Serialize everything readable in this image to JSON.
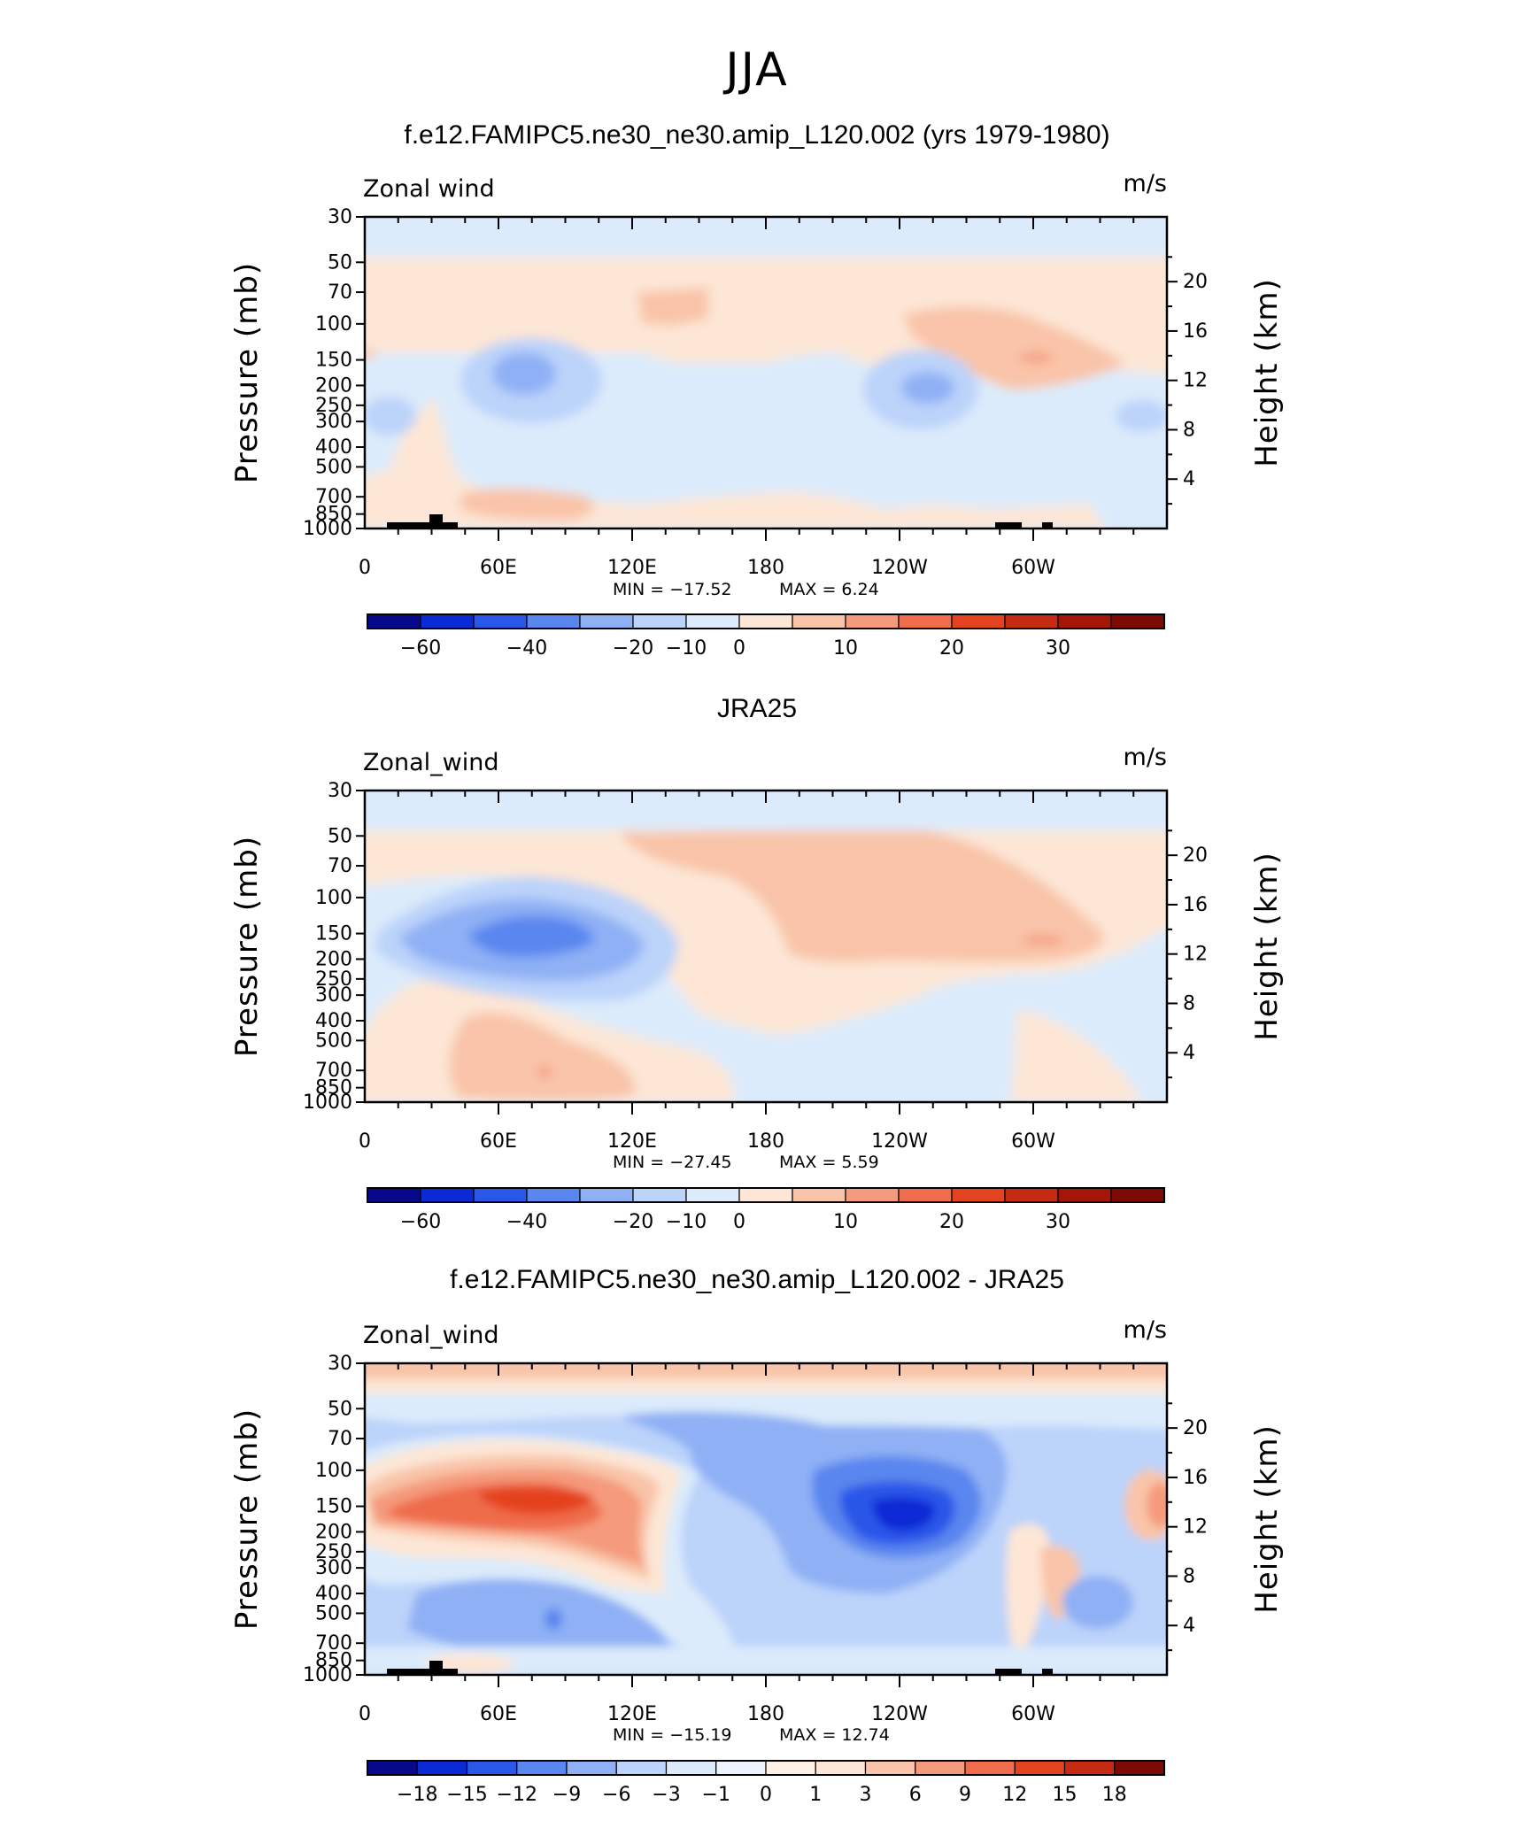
{
  "figure": {
    "title": "JJA"
  },
  "chart_data": [
    {
      "type": "heatmap",
      "title": "f.e12.FAMIPC5.ne30_ne30.amip_L120.002 (yrs 1979-1980)",
      "left_label": "Zonal wind",
      "units_label": "m/s",
      "ylabel": "Pressure (mb)",
      "ylabel_right": "Height (km)",
      "x_ticks": [
        "0",
        "60E",
        "120E",
        "180",
        "120W",
        "60W"
      ],
      "y_ticks": [
        "30",
        "50",
        "70",
        "100",
        "150",
        "200",
        "250",
        "300",
        "400",
        "500",
        "700",
        "850",
        "1000"
      ],
      "y_right_ticks": [
        "20",
        "16",
        "12",
        "8",
        "4"
      ],
      "min_text": "MIN = −17.52",
      "max_text": "MAX = 6.24",
      "colorbar_labels": [
        "−60",
        "−40",
        "−20",
        "−10",
        "0",
        "10",
        "20",
        "30"
      ],
      "colorbar_colors": [
        "#08088c",
        "#0a2ad6",
        "#2a57e8",
        "#5a86ef",
        "#8fb0f5",
        "#bcd3fa",
        "#dcebfb",
        "#fde6d6",
        "#f9c4a9",
        "#f59a7c",
        "#ef6c4c",
        "#e4431f",
        "#c52a12",
        "#a31608",
        "#7d0a04"
      ],
      "features": [
        {
          "lon": 0,
          "lat": 0,
          "p": 30,
          "u": -3
        },
        {
          "lon": 78,
          "p": 180,
          "u": -17.52
        },
        {
          "lon": 230,
          "p": 200,
          "u": -15
        },
        {
          "lon": 290,
          "p": 150,
          "u": 6.24
        }
      ]
    },
    {
      "type": "heatmap",
      "title": "JRA25",
      "left_label": "Zonal_wind",
      "units_label": "m/s",
      "ylabel": "Pressure (mb)",
      "ylabel_right": "Height (km)",
      "x_ticks": [
        "0",
        "60E",
        "120E",
        "180",
        "120W",
        "60W"
      ],
      "y_ticks": [
        "30",
        "50",
        "70",
        "100",
        "150",
        "200",
        "250",
        "300",
        "400",
        "500",
        "700",
        "850",
        "1000"
      ],
      "y_right_ticks": [
        "20",
        "16",
        "12",
        "8",
        "4"
      ],
      "min_text": "MIN = −27.45",
      "max_text": "MAX = 5.59",
      "colorbar_labels": [
        "−60",
        "−40",
        "−20",
        "−10",
        "0",
        "10",
        "20",
        "30"
      ],
      "colorbar_colors": [
        "#08088c",
        "#0a2ad6",
        "#2a57e8",
        "#5a86ef",
        "#8fb0f5",
        "#bcd3fa",
        "#dcebfb",
        "#fde6d6",
        "#f9c4a9",
        "#f59a7c",
        "#ef6c4c",
        "#e4431f",
        "#c52a12",
        "#a31608",
        "#7d0a04"
      ],
      "features": [
        {
          "lon": 70,
          "p": 150,
          "u": -27.45
        },
        {
          "lon": 240,
          "p": 100,
          "u": 5.59
        }
      ]
    },
    {
      "type": "heatmap",
      "title": "f.e12.FAMIPC5.ne30_ne30.amip_L120.002 - JRA25",
      "left_label": "Zonal_wind",
      "units_label": "m/s",
      "ylabel": "Pressure (mb)",
      "ylabel_right": "Height (km)",
      "x_ticks": [
        "0",
        "60E",
        "120E",
        "180",
        "120W",
        "60W"
      ],
      "y_ticks": [
        "30",
        "50",
        "70",
        "100",
        "150",
        "200",
        "250",
        "300",
        "400",
        "500",
        "700",
        "850",
        "1000"
      ],
      "y_right_ticks": [
        "20",
        "16",
        "12",
        "8",
        "4"
      ],
      "min_text": "MIN = −15.19",
      "max_text": "MAX = 12.74",
      "colorbar_labels": [
        "−18",
        "−15",
        "−12",
        "−9",
        "−6",
        "−3",
        "−1",
        "0",
        "1",
        "3",
        "6",
        "9",
        "12",
        "15",
        "18"
      ],
      "colorbar_colors": [
        "#08088c",
        "#0a2ad6",
        "#2a57e8",
        "#5a86ef",
        "#8fb0f5",
        "#bcd3fa",
        "#dcebfb",
        "#eef4fd",
        "#fdf0e6",
        "#fde6d6",
        "#f9c4a9",
        "#f59a7c",
        "#ef6c4c",
        "#e4431f",
        "#c52a12",
        "#7d0a04"
      ],
      "features": [
        {
          "lon": 80,
          "p": 150,
          "u": 12.74
        },
        {
          "lon": 240,
          "p": 170,
          "u": -15.19
        }
      ]
    }
  ]
}
